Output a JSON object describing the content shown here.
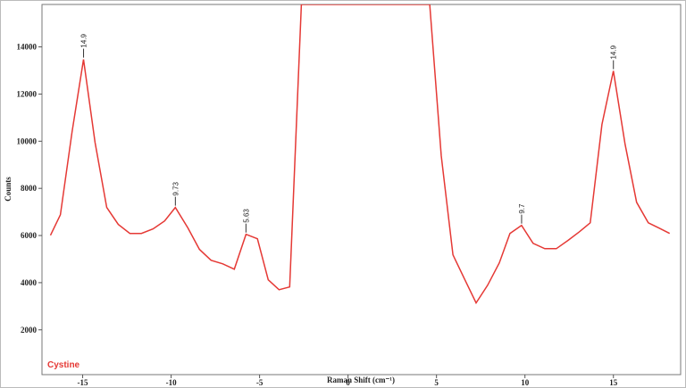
{
  "chart_data": {
    "type": "line",
    "xlabel": "Raman Shift (cm⁻¹)",
    "ylabel": "Counts",
    "xlim": [
      -17.3,
      18.8
    ],
    "ylim": [
      100,
      15800
    ],
    "xticks": [
      -15,
      -10,
      -5,
      0,
      5,
      10,
      15
    ],
    "yticks": [
      2000,
      4000,
      6000,
      8000,
      10000,
      12000,
      14000
    ],
    "legend": "bottom-left",
    "series": [
      {
        "name": "Cystine",
        "color": "#e53935",
        "x": [
          -16.82,
          -16.26,
          -15.6,
          -14.95,
          -14.3,
          -13.64,
          -12.99,
          -12.33,
          -11.68,
          -11.02,
          -10.37,
          -9.76,
          -9.05,
          -8.4,
          -7.74,
          -7.08,
          -6.43,
          -5.77,
          -5.12,
          -4.51,
          -3.9,
          -3.3,
          -2.64,
          4.62,
          5.27,
          5.93,
          6.58,
          7.24,
          7.89,
          8.55,
          9.15,
          9.81,
          10.46,
          11.12,
          11.77,
          12.43,
          13.08,
          13.69,
          14.35,
          15.0,
          15.66,
          16.31,
          16.97,
          17.57,
          18.18
        ],
        "values": [
          6010,
          6880,
          10400,
          13470,
          9950,
          7190,
          6470,
          6090,
          6090,
          6280,
          6620,
          7190,
          6320,
          5410,
          4950,
          4800,
          4570,
          6050,
          5860,
          4120,
          3700,
          3820,
          15800,
          15800,
          9380,
          5180,
          4160,
          3140,
          3890,
          4840,
          6090,
          6430,
          5670,
          5440,
          5440,
          5790,
          6160,
          6540,
          10710,
          12980,
          9870,
          7410,
          6540,
          6320,
          6090
        ]
      }
    ],
    "annotations": [
      {
        "text": "14.9",
        "x": -14.95,
        "y": 13470
      },
      {
        "text": "9.73",
        "x": -9.76,
        "y": 7190
      },
      {
        "text": "5.63",
        "x": -5.77,
        "y": 6050
      },
      {
        "text": "9.7",
        "x": 9.81,
        "y": 6430
      },
      {
        "text": "14.9",
        "x": 15.0,
        "y": 12980
      }
    ]
  }
}
